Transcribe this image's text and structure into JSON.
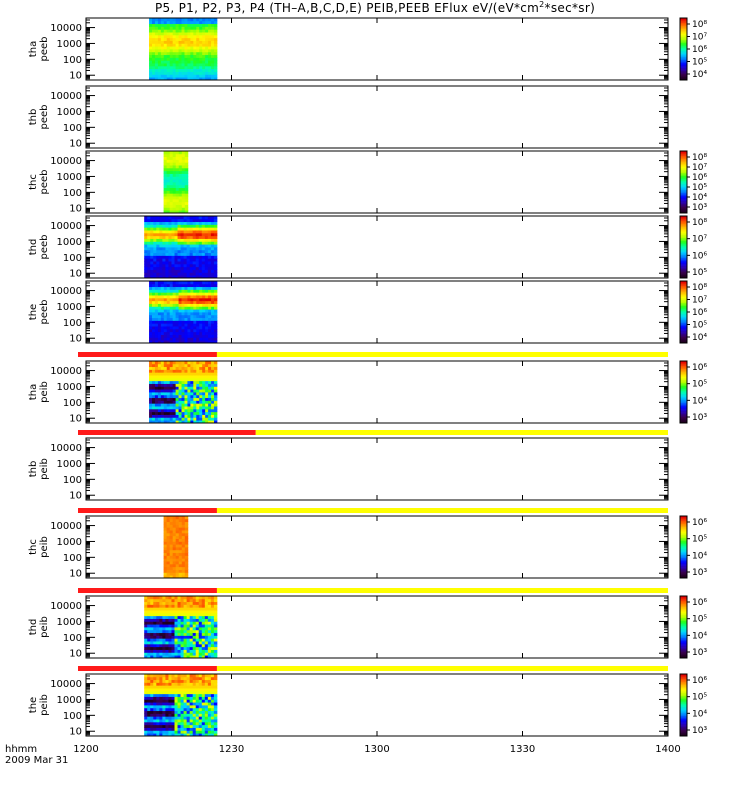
{
  "title": {
    "prefix": "P5, P1, P2, P3, P4 (TH–A,B,C,D,E) PEIB,PEEB EFlux eV/(eV*cm",
    "sup": "2",
    "suffix": "*sec*sr)"
  },
  "footer": {
    "hhmm": "hhmm",
    "date": "2009 Mar 31"
  },
  "colors": {
    "red_bar": "#ff1a1a",
    "yellow_bar": "#ffff00",
    "frame": "#000000",
    "rainbow": [
      "#ffffff",
      "#1a001a",
      "#3a004f",
      "#2a00b0",
      "#0000ff",
      "#0078ff",
      "#00d2ff",
      "#00ffb0",
      "#1eff1e",
      "#b4ff00",
      "#ffff00",
      "#ffb400",
      "#ff5a00",
      "#e00000"
    ]
  },
  "chart_data": {
    "type": "heatmap",
    "x_axis": {
      "label": "hhmm",
      "range": [
        "1200",
        "1400"
      ],
      "ticks": [
        "1200",
        "1230",
        "1300",
        "1330",
        "1400"
      ]
    },
    "y_axis": {
      "scale": "log",
      "range": [
        5,
        40000
      ],
      "ticks": [
        "10",
        "100",
        "1000",
        "10000"
      ]
    },
    "panels": [
      {
        "probe": "tha",
        "product": "peeb",
        "label_lines": [
          "tha",
          "peeb"
        ],
        "data_start": "1213",
        "data_end": "1227",
        "profile": "electron_bright",
        "colorbar": {
          "ticks": [
            "10⁴",
            "10⁵",
            "10⁶",
            "10⁷",
            "10⁸"
          ]
        }
      },
      {
        "probe": "thb",
        "product": "peeb",
        "label_lines": [
          "thb",
          "peeb"
        ],
        "data_start": null,
        "data_end": null,
        "profile": "none",
        "colorbar": null
      },
      {
        "probe": "thc",
        "product": "peeb",
        "label_lines": [
          "thc",
          "peeb"
        ],
        "data_start": "1216",
        "data_end": "1221",
        "profile": "green",
        "colorbar": {
          "ticks": [
            "10³",
            "10⁴",
            "10⁵",
            "10⁶",
            "10⁷",
            "10⁸"
          ]
        }
      },
      {
        "probe": "thd",
        "product": "peeb",
        "label_lines": [
          "thd",
          "peeb"
        ],
        "data_start": "1212",
        "data_end": "1227",
        "profile": "electron_band",
        "colorbar": {
          "ticks": [
            "10⁵",
            "10⁶",
            "10⁷",
            "10⁸"
          ]
        }
      },
      {
        "probe": "the",
        "product": "peeb",
        "label_lines": [
          "the",
          "peeb"
        ],
        "data_start": "1213",
        "data_end": "1227",
        "profile": "electron_band",
        "colorbar": {
          "ticks": [
            "10⁴",
            "10⁵",
            "10⁶",
            "10⁷",
            "10⁸"
          ]
        }
      },
      {
        "probe": "tha",
        "product": "peib",
        "label_lines": [
          "tha",
          "peib"
        ],
        "data_start": "1213",
        "data_end": "1227",
        "profile": "ion_noisy",
        "colorbar": {
          "ticks": [
            "10³",
            "10⁴",
            "10⁵",
            "10⁶"
          ]
        }
      },
      {
        "probe": "thb",
        "product": "peib",
        "label_lines": [
          "thb",
          "peib"
        ],
        "data_start": null,
        "data_end": null,
        "profile": "none",
        "colorbar": null
      },
      {
        "probe": "thc",
        "product": "peib",
        "label_lines": [
          "thc",
          "peib"
        ],
        "data_start": "1216",
        "data_end": "1221",
        "profile": "ion_orange",
        "colorbar": {
          "ticks": [
            "10³",
            "10⁴",
            "10⁵",
            "10⁶"
          ]
        }
      },
      {
        "probe": "thd",
        "product": "peib",
        "label_lines": [
          "thd",
          "peib"
        ],
        "data_start": "1212",
        "data_end": "1227",
        "profile": "ion_noisy",
        "colorbar": {
          "ticks": [
            "10³",
            "10⁴",
            "10⁵",
            "10⁶"
          ]
        }
      },
      {
        "probe": "the",
        "product": "peib",
        "label_lines": [
          "the",
          "peib"
        ],
        "data_start": "1212",
        "data_end": "1227",
        "profile": "ion_noisy",
        "colorbar": {
          "ticks": [
            "10³",
            "10⁴",
            "10⁵",
            "10⁶"
          ]
        }
      }
    ],
    "mode_bars": [
      {
        "above_panel": 5,
        "red_end": "1227"
      },
      {
        "above_panel": 6,
        "red_end": "1235"
      },
      {
        "above_panel": 7,
        "red_end": "1227"
      },
      {
        "above_panel": 8,
        "red_end": "1227"
      },
      {
        "above_panel": 9,
        "red_end": "1227"
      }
    ]
  }
}
